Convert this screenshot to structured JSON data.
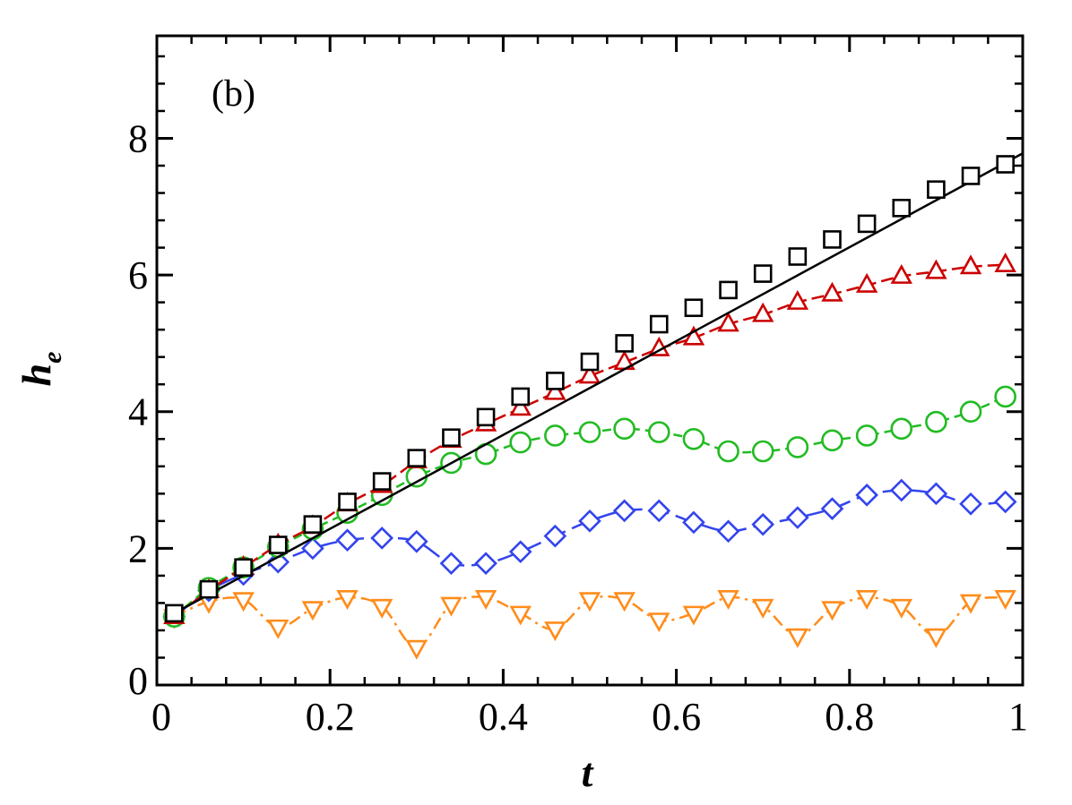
{
  "chart_data": {
    "type": "line",
    "title": "",
    "panel_label": "(b)",
    "xlabel": "t",
    "ylabel_main": "h",
    "ylabel_sub": "e",
    "xlim": [
      0,
      1
    ],
    "ylim": [
      0,
      9.5
    ],
    "x_ticks": [
      {
        "value": 0,
        "label": "0"
      },
      {
        "value": 0.2,
        "label": "0.2"
      },
      {
        "value": 0.4,
        "label": "0.4"
      },
      {
        "value": 0.6,
        "label": "0.6"
      },
      {
        "value": 0.8,
        "label": "0.8"
      },
      {
        "value": 1,
        "label": "1"
      }
    ],
    "y_ticks": [
      {
        "value": 0,
        "label": "0"
      },
      {
        "value": 2,
        "label": "2"
      },
      {
        "value": 4,
        "label": "4"
      },
      {
        "value": 6,
        "label": "6"
      },
      {
        "value": 8,
        "label": "8"
      }
    ],
    "x_minor_step": 0.04,
    "y_minor_step": 0.4,
    "grid": false,
    "series": [
      {
        "name": "squares",
        "color": "#000000",
        "marker": "square",
        "dash": "",
        "x": [
          0.02,
          0.06,
          0.1,
          0.14,
          0.18,
          0.22,
          0.26,
          0.3,
          0.34,
          0.38,
          0.42,
          0.46,
          0.5,
          0.54,
          0.58,
          0.62,
          0.66,
          0.7,
          0.74,
          0.78,
          0.82,
          0.86,
          0.9,
          0.94,
          0.98
        ],
        "y": [
          1.05,
          1.4,
          1.72,
          2.05,
          2.35,
          2.68,
          2.98,
          3.32,
          3.62,
          3.92,
          4.22,
          4.45,
          4.73,
          5.0,
          5.28,
          5.52,
          5.78,
          6.02,
          6.27,
          6.52,
          6.75,
          6.98,
          7.25,
          7.45,
          7.62
        ],
        "line_x": [
          0.02,
          1.0
        ],
        "line_y": [
          1.05,
          7.78
        ]
      },
      {
        "name": "triangles-up",
        "color": "#cc0000",
        "marker": "triangle-up",
        "dash": "14 6",
        "x": [
          0.02,
          0.06,
          0.1,
          0.14,
          0.18,
          0.22,
          0.26,
          0.3,
          0.34,
          0.38,
          0.42,
          0.46,
          0.5,
          0.54,
          0.58,
          0.62,
          0.66,
          0.7,
          0.74,
          0.78,
          0.82,
          0.86,
          0.9,
          0.94,
          0.98
        ],
        "y": [
          1.0,
          1.38,
          1.72,
          2.05,
          2.32,
          2.65,
          2.92,
          3.28,
          3.58,
          3.82,
          4.05,
          4.28,
          4.52,
          4.72,
          4.92,
          5.08,
          5.28,
          5.42,
          5.6,
          5.72,
          5.85,
          5.98,
          6.05,
          6.12,
          6.15
        ]
      },
      {
        "name": "circles",
        "color": "#22bb22",
        "marker": "circle",
        "dash": "10 6",
        "x": [
          0.02,
          0.06,
          0.1,
          0.14,
          0.18,
          0.22,
          0.26,
          0.3,
          0.34,
          0.38,
          0.42,
          0.46,
          0.5,
          0.54,
          0.58,
          0.62,
          0.66,
          0.7,
          0.74,
          0.78,
          0.82,
          0.86,
          0.9,
          0.94,
          0.98
        ],
        "y": [
          1.0,
          1.42,
          1.72,
          2.02,
          2.28,
          2.52,
          2.78,
          3.05,
          3.25,
          3.38,
          3.55,
          3.65,
          3.7,
          3.75,
          3.7,
          3.6,
          3.42,
          3.42,
          3.48,
          3.58,
          3.65,
          3.75,
          3.85,
          4.0,
          4.22
        ]
      },
      {
        "name": "diamonds",
        "color": "#3344ee",
        "marker": "diamond",
        "dash": "22 8",
        "x": [
          0.02,
          0.06,
          0.1,
          0.14,
          0.18,
          0.22,
          0.26,
          0.3,
          0.34,
          0.38,
          0.42,
          0.46,
          0.5,
          0.54,
          0.58,
          0.62,
          0.66,
          0.7,
          0.74,
          0.78,
          0.82,
          0.86,
          0.9,
          0.94,
          0.98
        ],
        "y": [
          1.0,
          1.38,
          1.62,
          1.8,
          2.0,
          2.12,
          2.15,
          2.1,
          1.78,
          1.78,
          1.95,
          2.18,
          2.4,
          2.55,
          2.55,
          2.38,
          2.25,
          2.35,
          2.45,
          2.58,
          2.78,
          2.85,
          2.8,
          2.65,
          2.68
        ]
      },
      {
        "name": "triangles-down",
        "color": "#ff8c1a",
        "marker": "triangle-down",
        "dash": "14 6 3 6",
        "x": [
          0.02,
          0.06,
          0.1,
          0.14,
          0.18,
          0.22,
          0.26,
          0.3,
          0.34,
          0.38,
          0.42,
          0.46,
          0.5,
          0.54,
          0.58,
          0.62,
          0.66,
          0.7,
          0.74,
          0.78,
          0.82,
          0.86,
          0.9,
          0.94,
          0.98
        ],
        "y": [
          1.0,
          1.22,
          1.25,
          0.85,
          1.12,
          1.28,
          1.15,
          0.55,
          1.18,
          1.28,
          1.05,
          0.82,
          1.25,
          1.25,
          0.95,
          1.05,
          1.28,
          1.15,
          0.72,
          1.12,
          1.28,
          1.15,
          0.72,
          1.22,
          1.28
        ]
      }
    ]
  }
}
